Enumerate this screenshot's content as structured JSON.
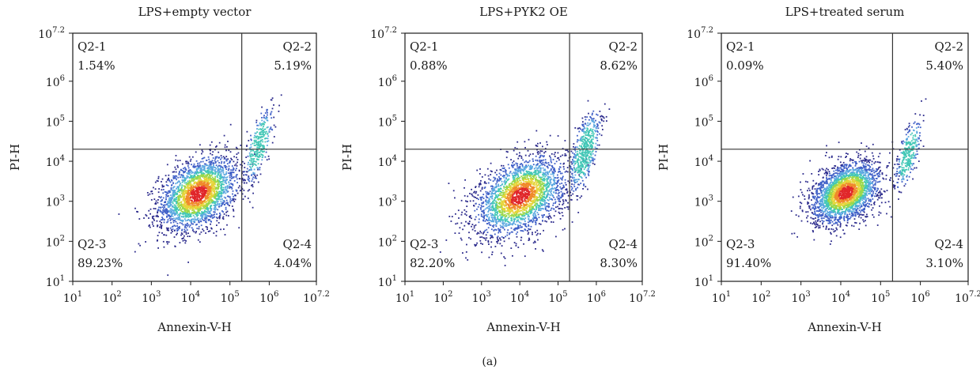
{
  "figure_label": "(a)",
  "chart_data": [
    {
      "type": "scatter",
      "title": "LPS+empty vector",
      "xlabel": "Annexin-V-H",
      "ylabel": "PI-H",
      "x_scale": "log10",
      "y_scale": "log10",
      "xlim": [
        10,
        15848932
      ],
      "ylim": [
        10,
        15848932
      ],
      "x_tick_labels": [
        {
          "base": "10",
          "exp": "1"
        },
        {
          "base": "10",
          "exp": "2"
        },
        {
          "base": "10",
          "exp": "3"
        },
        {
          "base": "10",
          "exp": "4"
        },
        {
          "base": "10",
          "exp": "5"
        },
        {
          "base": "10",
          "exp": "6"
        },
        {
          "base": "10",
          "exp": "7.2"
        }
      ],
      "y_tick_labels": [
        {
          "base": "10",
          "exp": "1"
        },
        {
          "base": "10",
          "exp": "2"
        },
        {
          "base": "10",
          "exp": "3"
        },
        {
          "base": "10",
          "exp": "4"
        },
        {
          "base": "10",
          "exp": "5"
        },
        {
          "base": "10",
          "exp": "6"
        },
        {
          "base": "10",
          "exp": "7.2"
        }
      ],
      "gate_x": 200000,
      "gate_y": 20000,
      "quadrants": [
        {
          "name": "Q2-1",
          "value": "1.54%",
          "pos": "top-left"
        },
        {
          "name": "Q2-2",
          "value": "5.19%",
          "pos": "top-right"
        },
        {
          "name": "Q2-3",
          "value": "89.23%",
          "pos": "bottom-left"
        },
        {
          "name": "Q2-4",
          "value": "4.04%",
          "pos": "bottom-right"
        }
      ],
      "populations": [
        {
          "cx": 15000,
          "cy": 1600,
          "spread_x": 0.5,
          "spread_y": 0.42,
          "n": 2600
        },
        {
          "cx": 520000,
          "cy": 25000,
          "spread_x": 0.14,
          "spread_y": 0.45,
          "n": 320
        }
      ]
    },
    {
      "type": "scatter",
      "title": "LPS+PYK2 OE",
      "xlabel": "Annexin-V-H",
      "ylabel": "PI-H",
      "x_scale": "log10",
      "y_scale": "log10",
      "xlim": [
        10,
        15848932
      ],
      "ylim": [
        10,
        15848932
      ],
      "x_tick_labels": [
        {
          "base": "10",
          "exp": "1"
        },
        {
          "base": "10",
          "exp": "2"
        },
        {
          "base": "10",
          "exp": "3"
        },
        {
          "base": "10",
          "exp": "4"
        },
        {
          "base": "10",
          "exp": "5"
        },
        {
          "base": "10",
          "exp": "6"
        },
        {
          "base": "10",
          "exp": "7.2"
        }
      ],
      "y_tick_labels": [
        {
          "base": "10",
          "exp": "1"
        },
        {
          "base": "10",
          "exp": "2"
        },
        {
          "base": "10",
          "exp": "3"
        },
        {
          "base": "10",
          "exp": "4"
        },
        {
          "base": "10",
          "exp": "5"
        },
        {
          "base": "10",
          "exp": "6"
        },
        {
          "base": "10",
          "exp": "7.2"
        }
      ],
      "gate_x": 200000,
      "gate_y": 20000,
      "quadrants": [
        {
          "name": "Q2-1",
          "value": "0.88%",
          "pos": "top-left"
        },
        {
          "name": "Q2-2",
          "value": "8.62%",
          "pos": "top-right"
        },
        {
          "name": "Q2-3",
          "value": "82.20%",
          "pos": "bottom-left"
        },
        {
          "name": "Q2-4",
          "value": "8.30%",
          "pos": "bottom-right"
        }
      ],
      "populations": [
        {
          "cx": 10000,
          "cy": 1400,
          "spread_x": 0.58,
          "spread_y": 0.45,
          "n": 2600
        },
        {
          "cx": 480000,
          "cy": 18000,
          "spread_x": 0.16,
          "spread_y": 0.5,
          "n": 520
        }
      ]
    },
    {
      "type": "scatter",
      "title": "LPS+treated serum",
      "xlabel": "Annexin-V-H",
      "ylabel": "PI-H",
      "x_scale": "log10",
      "y_scale": "log10",
      "xlim": [
        10,
        15848932
      ],
      "ylim": [
        10,
        15848932
      ],
      "x_tick_labels": [
        {
          "base": "10",
          "exp": "1"
        },
        {
          "base": "10",
          "exp": "2"
        },
        {
          "base": "10",
          "exp": "3"
        },
        {
          "base": "10",
          "exp": "4"
        },
        {
          "base": "10",
          "exp": "5"
        },
        {
          "base": "10",
          "exp": "6"
        },
        {
          "base": "10",
          "exp": "7.2"
        }
      ],
      "y_tick_labels": [
        {
          "base": "10",
          "exp": "1"
        },
        {
          "base": "10",
          "exp": "2"
        },
        {
          "base": "10",
          "exp": "3"
        },
        {
          "base": "10",
          "exp": "4"
        },
        {
          "base": "10",
          "exp": "5"
        },
        {
          "base": "10",
          "exp": "6"
        },
        {
          "base": "10",
          "exp": "7.2"
        }
      ],
      "gate_x": 200000,
      "gate_y": 20000,
      "quadrants": [
        {
          "name": "Q2-1",
          "value": "0.09%",
          "pos": "top-left"
        },
        {
          "name": "Q2-2",
          "value": "5.40%",
          "pos": "top-right"
        },
        {
          "name": "Q2-3",
          "value": "91.40%",
          "pos": "bottom-left"
        },
        {
          "name": "Q2-4",
          "value": "3.10%",
          "pos": "bottom-right"
        }
      ],
      "populations": [
        {
          "cx": 13000,
          "cy": 1700,
          "spread_x": 0.42,
          "spread_y": 0.35,
          "n": 2600
        },
        {
          "cx": 480000,
          "cy": 16000,
          "spread_x": 0.12,
          "spread_y": 0.42,
          "n": 300
        }
      ]
    }
  ],
  "colors": {
    "axis": "#1a1a1a",
    "gate": "#333333",
    "density": [
      "#2b2a8c",
      "#3f5fc7",
      "#5aa7e0",
      "#43c7b6",
      "#9ad84a",
      "#e6d43a",
      "#f08a2b",
      "#e0262a"
    ]
  }
}
